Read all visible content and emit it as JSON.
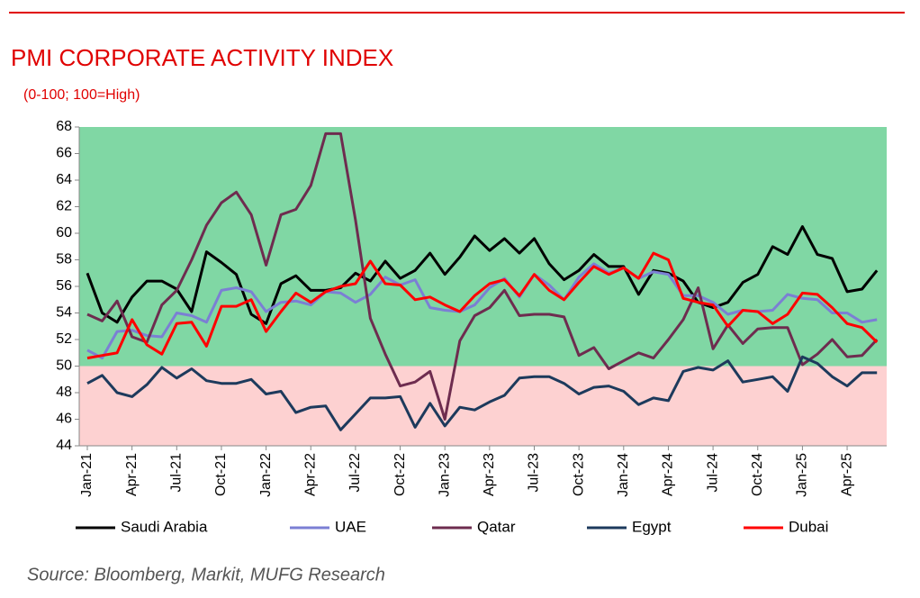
{
  "chart_data": {
    "type": "line",
    "title": "PMI CORPORATE ACTIVITY INDEX",
    "subtitle": "(0-100; 100=High)",
    "source": "Source: Bloomberg, Markit, MUFG Research",
    "categories": [
      "Jan-21",
      null,
      null,
      "Apr-21",
      null,
      null,
      "Jul-21",
      null,
      null,
      "Oct-21",
      null,
      null,
      "Jan-22",
      null,
      null,
      "Apr-22",
      null,
      null,
      "Jul-22",
      null,
      null,
      "Oct-22",
      null,
      null,
      "Jan-23",
      null,
      null,
      "Apr-23",
      null,
      null,
      "Jul-23",
      null,
      null,
      "Oct-23",
      null,
      null,
      "Jan-24",
      null,
      null,
      "Apr-24",
      null,
      null,
      "Jul-24",
      null,
      null,
      "Oct-24",
      null,
      null,
      "Jan-25",
      null,
      null,
      "Apr-25",
      null,
      null
    ],
    "ylim": [
      44,
      68
    ],
    "yticks": [
      44,
      46,
      48,
      50,
      52,
      54,
      56,
      58,
      60,
      62,
      64,
      66,
      68
    ],
    "threshold": 50,
    "above_color": "#80d7a4",
    "below_color": "#fdd1d1",
    "series": [
      {
        "name": "Saudi Arabia",
        "color": "#000000",
        "values": [
          57.0,
          54.0,
          53.3,
          55.2,
          56.4,
          56.4,
          55.8,
          54.1,
          58.6,
          57.8,
          56.9,
          53.9,
          53.2,
          56.2,
          56.8,
          55.7,
          55.7,
          55.9,
          57.0,
          56.4,
          57.9,
          56.6,
          57.2,
          58.5,
          56.9,
          58.2,
          59.8,
          58.7,
          59.6,
          58.5,
          59.6,
          57.7,
          56.5,
          57.2,
          58.4,
          57.5,
          57.5,
          55.4,
          57.2,
          57.0,
          56.4,
          54.8,
          54.4,
          54.8,
          56.3,
          56.9,
          59.0,
          58.4,
          60.5,
          58.4,
          58.1,
          55.6,
          55.8,
          57.2
        ]
      },
      {
        "name": "UAE",
        "color": "#7b7fd4",
        "values": [
          51.2,
          50.6,
          52.6,
          52.7,
          52.3,
          52.2,
          54.0,
          53.8,
          53.3,
          55.7,
          55.9,
          55.6,
          54.1,
          54.8,
          54.9,
          54.6,
          55.6,
          55.5,
          54.8,
          55.4,
          56.7,
          56.1,
          56.5,
          54.4,
          54.2,
          54.1,
          54.6,
          55.9,
          56.6,
          55.2,
          56.9,
          56.1,
          55.0,
          56.7,
          57.7,
          57.0,
          57.4,
          56.6,
          57.1,
          56.9,
          55.3,
          55.3,
          54.8,
          53.9,
          54.2,
          54.1,
          54.2,
          55.4,
          55.1,
          55.0,
          54.0,
          54.0,
          53.3,
          53.5
        ]
      },
      {
        "name": "Qatar",
        "color": "#6e2c4f",
        "values": [
          53.9,
          53.4,
          54.9,
          52.2,
          51.8,
          54.6,
          55.7,
          58.0,
          60.6,
          62.3,
          63.1,
          61.4,
          57.6,
          61.4,
          61.8,
          63.6,
          67.5,
          67.5,
          61.0,
          53.6,
          50.9,
          48.5,
          48.8,
          49.6,
          46.0,
          51.9,
          53.8,
          54.4,
          55.7,
          53.8,
          53.9,
          53.9,
          53.7,
          50.8,
          51.4,
          49.8,
          50.4,
          51.0,
          50.6,
          52.0,
          53.5,
          55.9,
          51.3,
          53.1,
          51.7,
          52.8,
          52.9,
          52.9,
          50.1,
          50.9,
          52.0,
          50.7,
          50.8,
          52.0
        ]
      },
      {
        "name": "Egypt",
        "color": "#1d3a5c",
        "values": [
          48.7,
          49.3,
          48.0,
          47.7,
          48.6,
          49.9,
          49.1,
          49.8,
          48.9,
          48.7,
          48.7,
          49.0,
          47.9,
          48.1,
          46.5,
          46.9,
          47.0,
          45.2,
          46.4,
          47.6,
          47.6,
          47.7,
          45.4,
          47.2,
          45.5,
          46.9,
          46.7,
          47.3,
          47.8,
          49.1,
          49.2,
          49.2,
          48.7,
          47.9,
          48.4,
          48.5,
          48.1,
          47.1,
          47.6,
          47.4,
          49.6,
          49.9,
          49.7,
          50.4,
          48.8,
          49.0,
          49.2,
          48.1,
          50.7,
          50.2,
          49.2,
          48.5,
          49.5,
          49.5
        ]
      },
      {
        "name": "Dubai",
        "color": "#ff0000",
        "values": [
          50.6,
          50.8,
          51.0,
          53.5,
          51.6,
          50.9,
          53.2,
          53.3,
          51.5,
          54.5,
          54.5,
          55.0,
          52.6,
          54.1,
          55.5,
          54.8,
          55.6,
          56.0,
          56.2,
          57.9,
          56.2,
          56.1,
          55.0,
          55.2,
          54.6,
          54.1,
          55.3,
          56.2,
          56.5,
          55.3,
          56.9,
          55.7,
          55.0,
          56.3,
          57.5,
          56.9,
          57.4,
          56.6,
          58.5,
          58.0,
          55.1,
          54.8,
          54.6,
          53.0,
          54.2,
          54.1,
          53.2,
          53.9,
          55.5,
          55.4,
          54.4,
          53.2,
          52.9,
          51.8
        ]
      }
    ]
  }
}
